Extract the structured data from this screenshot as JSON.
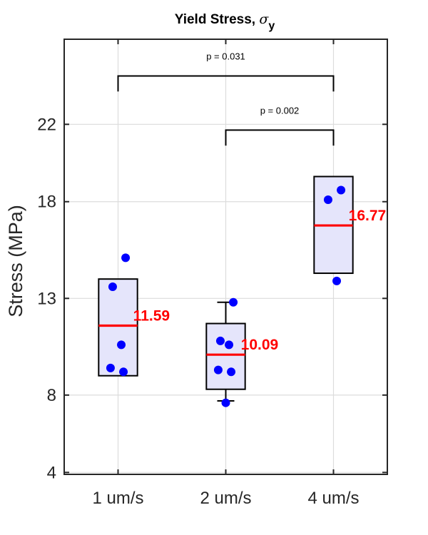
{
  "chart_data": {
    "type": "box",
    "title": "Yield Stress, ",
    "title_symbol": "σ",
    "title_subscript": "y",
    "ylabel": "Stress (MPa)",
    "xlabel": "",
    "ylim": [
      3.9,
      26.4
    ],
    "yticks": [
      4,
      8,
      13,
      18,
      22
    ],
    "categories": [
      "1 um/s",
      "2 um/s",
      "4 um/s"
    ],
    "grid": true,
    "groups": [
      {
        "category": "1 um/s",
        "box_low": 9.0,
        "box_high": 14.0,
        "median": 11.59,
        "median_label": "11.59",
        "whisker_low": null,
        "whisker_high": null,
        "points": [
          15.1,
          13.6,
          10.6,
          9.4,
          9.2
        ]
      },
      {
        "category": "2 um/s",
        "box_low": 8.3,
        "box_high": 11.7,
        "median": 10.09,
        "median_label": "10.09",
        "whisker_low": 7.7,
        "whisker_high": 12.8,
        "points": [
          12.8,
          10.8,
          10.6,
          9.3,
          9.2,
          7.6
        ]
      },
      {
        "category": "4 um/s",
        "box_low": 14.3,
        "box_high": 19.3,
        "median": 16.77,
        "median_label": "16.77",
        "whisker_low": null,
        "whisker_high": null,
        "points": [
          18.6,
          18.1,
          13.9
        ]
      }
    ],
    "significance": [
      {
        "from": "1 um/s",
        "to": "4 um/s",
        "label": "p = 0.031",
        "level": 24.5,
        "drop": 0.8
      },
      {
        "from": "2 um/s",
        "to": "4 um/s",
        "label": "p = 0.002",
        "level": 21.7,
        "drop": 0.8
      }
    ],
    "colors": {
      "box_fill": "#e5e5fb",
      "box_edge": "#000000",
      "median": "#ff0000",
      "median_label": "#ff0000",
      "points": "#0000ff",
      "grid": "#dcdcdc",
      "axis": "#262626"
    }
  }
}
